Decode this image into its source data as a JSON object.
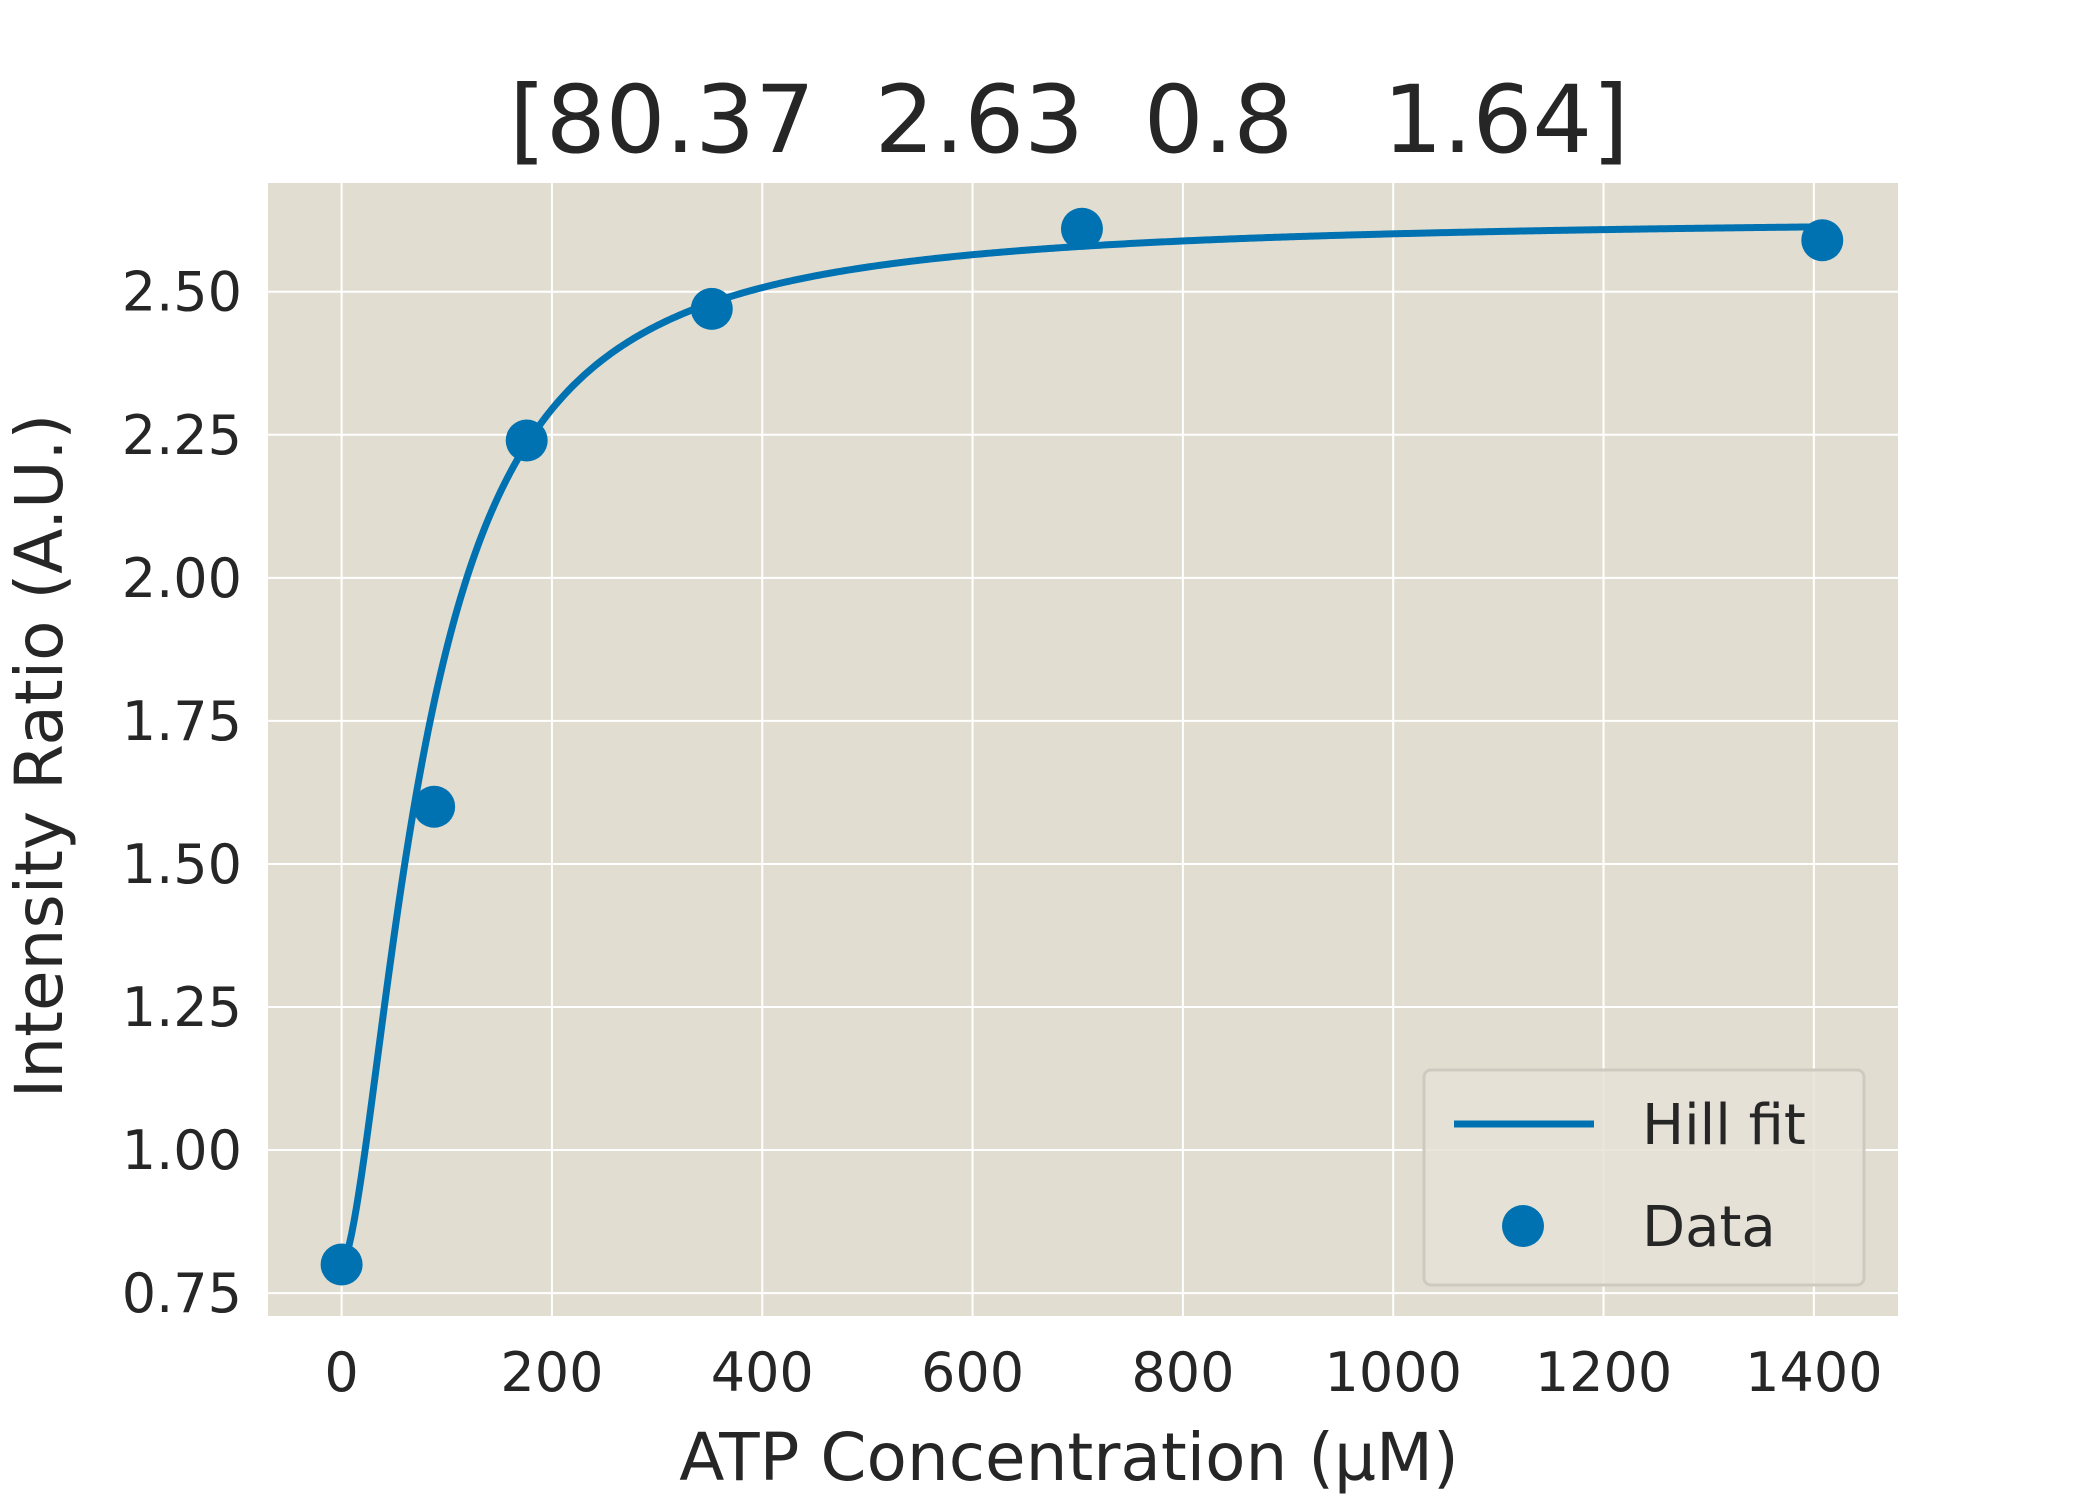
{
  "chart_data": {
    "type": "line",
    "title": "[80.37  2.63  0.8   1.64]",
    "xlabel": "ATP Concentration (µM)",
    "ylabel": "Intensity Ratio (A.U.)",
    "xlim": [
      -70,
      1480
    ],
    "ylim": [
      0.71,
      2.69
    ],
    "xticks": [
      0,
      200,
      400,
      600,
      800,
      1000,
      1200,
      1400
    ],
    "xtick_labels": [
      "0",
      "200",
      "400",
      "600",
      "800",
      "1000",
      "1200",
      "1400"
    ],
    "yticks": [
      0.75,
      1.0,
      1.25,
      1.5,
      1.75,
      2.0,
      2.25,
      2.5
    ],
    "ytick_labels": [
      "0.75",
      "1.00",
      "1.25",
      "1.50",
      "1.75",
      "2.00",
      "2.25",
      "2.50"
    ],
    "grid": true,
    "legend_position": "lower-right",
    "colors": {
      "series": "#0072b2",
      "plot_background": "#e2ddd1",
      "grid": "#ffffff",
      "text": "#262626"
    },
    "series": [
      {
        "name": "Hill fit",
        "kind": "line",
        "equation": "y = y0 + (ymax - y0) * x^n / (K^n + x^n)",
        "params": {
          "K": 80.37,
          "ymax": 2.63,
          "y0": 0.8,
          "n": 1.64
        },
        "x_range": [
          0,
          1410
        ]
      },
      {
        "name": "Data",
        "kind": "scatter",
        "x": [
          0,
          88,
          176,
          352,
          704,
          1408
        ],
        "y": [
          0.8,
          1.6,
          2.24,
          2.47,
          2.61,
          2.59
        ]
      }
    ]
  }
}
